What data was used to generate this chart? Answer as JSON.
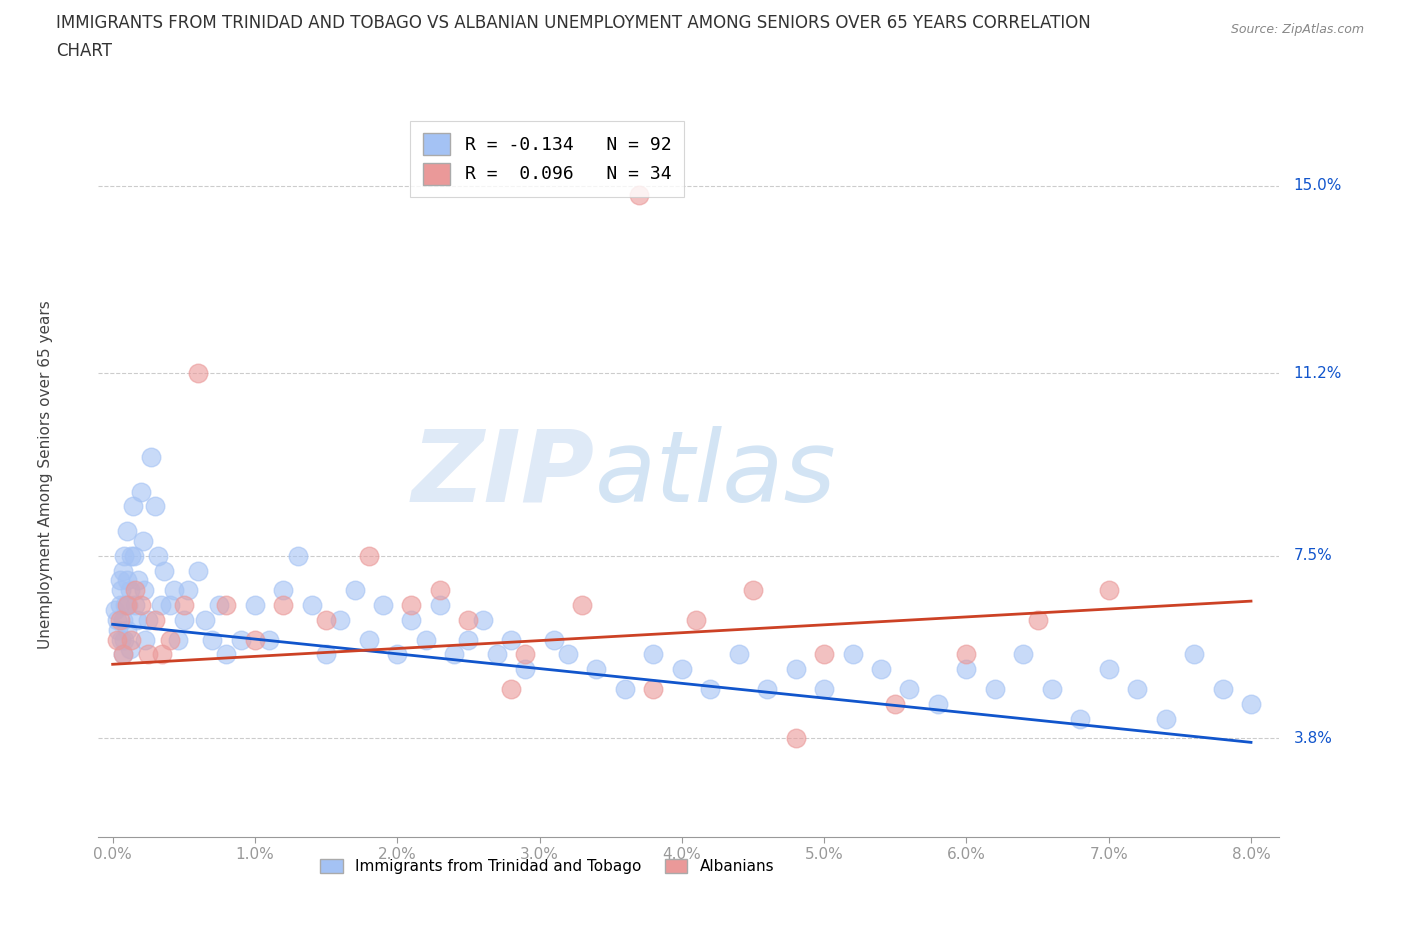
{
  "title_line1": "IMMIGRANTS FROM TRINIDAD AND TOBAGO VS ALBANIAN UNEMPLOYMENT AMONG SENIORS OVER 65 YEARS CORRELATION",
  "title_line2": "CHART",
  "source": "Source: ZipAtlas.com",
  "ylabel_label": "Unemployment Among Seniors over 65 years",
  "xlim": [
    -0.001,
    0.082
  ],
  "ylim": [
    0.018,
    0.165
  ],
  "yticks": [
    0.038,
    0.075,
    0.112,
    0.15
  ],
  "ytick_labels": [
    "3.8%",
    "7.5%",
    "11.2%",
    "15.0%"
  ],
  "xticks": [
    0.0,
    0.01,
    0.02,
    0.03,
    0.04,
    0.05,
    0.06,
    0.07,
    0.08
  ],
  "xtick_labels": [
    "0.0%",
    "1.0%",
    "2.0%",
    "3.0%",
    "4.0%",
    "5.0%",
    "6.0%",
    "7.0%",
    "8.0%"
  ],
  "color_blue": "#a4c2f4",
  "color_pink": "#ea9999",
  "color_blue_line": "#1155cc",
  "color_pink_line": "#cc4125",
  "watermark_zip": "ZIP",
  "watermark_atlas": "atlas",
  "watermark_color_zip": "#b8cce4",
  "watermark_color_atlas": "#9fc5e8",
  "legend_label_1": "R = -0.134   N = 92",
  "legend_label_2": "R =  0.096   N = 34",
  "legend_label_blue": "Immigrants from Trinidad and Tobago",
  "legend_label_pink": "Albanians",
  "background_color": "#ffffff",
  "grid_color": "#b7b7b7",
  "tick_color": "#1155cc",
  "title_fontsize": 12,
  "axis_label_fontsize": 11,
  "tick_fontsize": 11,
  "blue_trend": [
    0.0611,
    -0.299
  ],
  "pink_trend": [
    0.053,
    0.16
  ],
  "blue_x": [
    0.0002,
    0.0003,
    0.0004,
    0.0005,
    0.0005,
    0.0006,
    0.0006,
    0.0007,
    0.0007,
    0.0007,
    0.0008,
    0.0008,
    0.0009,
    0.001,
    0.001,
    0.001,
    0.0011,
    0.0012,
    0.0012,
    0.0013,
    0.0014,
    0.0015,
    0.0016,
    0.0017,
    0.0018,
    0.002,
    0.0021,
    0.0022,
    0.0023,
    0.0025,
    0.0027,
    0.003,
    0.0032,
    0.0034,
    0.0036,
    0.004,
    0.0043,
    0.0046,
    0.005,
    0.0053,
    0.006,
    0.0065,
    0.007,
    0.0075,
    0.008,
    0.009,
    0.01,
    0.011,
    0.012,
    0.013,
    0.014,
    0.015,
    0.016,
    0.017,
    0.018,
    0.019,
    0.02,
    0.021,
    0.022,
    0.023,
    0.024,
    0.025,
    0.026,
    0.027,
    0.028,
    0.029,
    0.031,
    0.032,
    0.034,
    0.036,
    0.038,
    0.04,
    0.042,
    0.044,
    0.046,
    0.048,
    0.05,
    0.052,
    0.054,
    0.056,
    0.058,
    0.06,
    0.062,
    0.064,
    0.066,
    0.068,
    0.07,
    0.072,
    0.074,
    0.076,
    0.078,
    0.08
  ],
  "blue_y": [
    0.064,
    0.062,
    0.06,
    0.07,
    0.065,
    0.068,
    0.058,
    0.072,
    0.062,
    0.055,
    0.075,
    0.058,
    0.065,
    0.08,
    0.07,
    0.06,
    0.065,
    0.068,
    0.056,
    0.075,
    0.085,
    0.075,
    0.065,
    0.062,
    0.07,
    0.088,
    0.078,
    0.068,
    0.058,
    0.062,
    0.095,
    0.085,
    0.075,
    0.065,
    0.072,
    0.065,
    0.068,
    0.058,
    0.062,
    0.068,
    0.072,
    0.062,
    0.058,
    0.065,
    0.055,
    0.058,
    0.065,
    0.058,
    0.068,
    0.075,
    0.065,
    0.055,
    0.062,
    0.068,
    0.058,
    0.065,
    0.055,
    0.062,
    0.058,
    0.065,
    0.055,
    0.058,
    0.062,
    0.055,
    0.058,
    0.052,
    0.058,
    0.055,
    0.052,
    0.048,
    0.055,
    0.052,
    0.048,
    0.055,
    0.048,
    0.052,
    0.048,
    0.055,
    0.052,
    0.048,
    0.045,
    0.052,
    0.048,
    0.055,
    0.048,
    0.042,
    0.052,
    0.048,
    0.042,
    0.055,
    0.048,
    0.045
  ],
  "pink_x": [
    0.0003,
    0.0005,
    0.0007,
    0.001,
    0.0013,
    0.0016,
    0.002,
    0.0025,
    0.003,
    0.0035,
    0.004,
    0.005,
    0.006,
    0.008,
    0.01,
    0.012,
    0.015,
    0.018,
    0.021,
    0.025,
    0.029,
    0.033,
    0.037,
    0.041,
    0.045,
    0.05,
    0.055,
    0.06,
    0.065,
    0.07,
    0.023,
    0.028,
    0.038,
    0.048
  ],
  "pink_y": [
    0.058,
    0.062,
    0.055,
    0.065,
    0.058,
    0.068,
    0.065,
    0.055,
    0.062,
    0.055,
    0.058,
    0.065,
    0.112,
    0.065,
    0.058,
    0.065,
    0.062,
    0.075,
    0.065,
    0.062,
    0.055,
    0.065,
    0.148,
    0.062,
    0.068,
    0.055,
    0.045,
    0.055,
    0.062,
    0.068,
    0.068,
    0.048,
    0.048,
    0.038
  ]
}
